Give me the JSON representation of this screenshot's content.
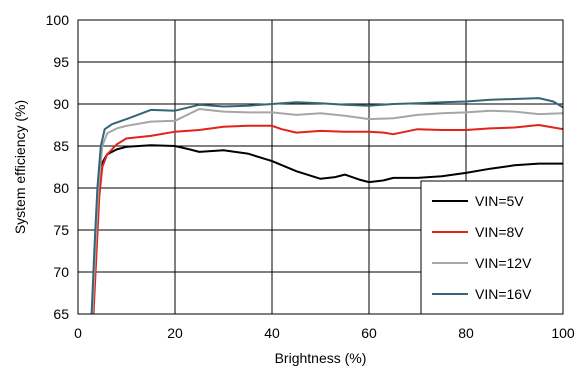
{
  "chart_data": {
    "type": "line",
    "xlabel": "Brightness (%)",
    "ylabel": "System efficiency (%)",
    "xlim": [
      0,
      100
    ],
    "ylim": [
      65,
      100
    ],
    "x_ticks": [
      0,
      20,
      40,
      60,
      80,
      100
    ],
    "y_ticks": [
      65,
      70,
      75,
      80,
      85,
      90,
      95,
      100
    ],
    "grid": true,
    "legend_position": "bottom-right",
    "series": [
      {
        "name": "VIN=5V",
        "color": "#000000",
        "points": [
          [
            3.0,
            65
          ],
          [
            3.6,
            72
          ],
          [
            4.2,
            79
          ],
          [
            5,
            83
          ],
          [
            6,
            84
          ],
          [
            8,
            84.6
          ],
          [
            10,
            84.9
          ],
          [
            15,
            85.1
          ],
          [
            20,
            85
          ],
          [
            23,
            84.6
          ],
          [
            25,
            84.3
          ],
          [
            30,
            84.5
          ],
          [
            35,
            84.1
          ],
          [
            40,
            83.2
          ],
          [
            45,
            82
          ],
          [
            50,
            81.1
          ],
          [
            53,
            81.3
          ],
          [
            55,
            81.6
          ],
          [
            58,
            81
          ],
          [
            60,
            80.7
          ],
          [
            63,
            80.9
          ],
          [
            65,
            81.2
          ],
          [
            70,
            81.2
          ],
          [
            75,
            81.4
          ],
          [
            80,
            81.8
          ],
          [
            85,
            82.3
          ],
          [
            90,
            82.7
          ],
          [
            95,
            82.9
          ],
          [
            100,
            82.9
          ]
        ]
      },
      {
        "name": "VIN=8V",
        "color": "#e32219",
        "points": [
          [
            3.2,
            65
          ],
          [
            3.8,
            72
          ],
          [
            4.4,
            79
          ],
          [
            5,
            82.5
          ],
          [
            6,
            84
          ],
          [
            8,
            85.2
          ],
          [
            10,
            85.9
          ],
          [
            15,
            86.2
          ],
          [
            20,
            86.7
          ],
          [
            25,
            86.9
          ],
          [
            30,
            87.3
          ],
          [
            35,
            87.4
          ],
          [
            40,
            87.4
          ],
          [
            42,
            87
          ],
          [
            45,
            86.6
          ],
          [
            50,
            86.8
          ],
          [
            55,
            86.7
          ],
          [
            60,
            86.7
          ],
          [
            63,
            86.6
          ],
          [
            65,
            86.4
          ],
          [
            70,
            87
          ],
          [
            75,
            86.9
          ],
          [
            80,
            86.9
          ],
          [
            85,
            87.1
          ],
          [
            90,
            87.2
          ],
          [
            95,
            87.5
          ],
          [
            98,
            87.2
          ],
          [
            100,
            87
          ]
        ]
      },
      {
        "name": "VIN=12V",
        "color": "#a6a6a6",
        "points": [
          [
            3.0,
            65
          ],
          [
            3.6,
            73
          ],
          [
            4.2,
            80
          ],
          [
            5,
            85
          ],
          [
            6,
            86.5
          ],
          [
            8,
            87.1
          ],
          [
            10,
            87.4
          ],
          [
            15,
            87.9
          ],
          [
            20,
            88
          ],
          [
            25,
            89.4
          ],
          [
            30,
            89.1
          ],
          [
            35,
            89
          ],
          [
            40,
            89
          ],
          [
            45,
            88.7
          ],
          [
            50,
            88.9
          ],
          [
            55,
            88.6
          ],
          [
            60,
            88.2
          ],
          [
            65,
            88.3
          ],
          [
            70,
            88.7
          ],
          [
            75,
            88.9
          ],
          [
            80,
            89
          ],
          [
            85,
            89.2
          ],
          [
            90,
            89.1
          ],
          [
            95,
            88.8
          ],
          [
            100,
            88.9
          ]
        ]
      },
      {
        "name": "VIN=16V",
        "color": "#336677",
        "points": [
          [
            2.8,
            65
          ],
          [
            3.4,
            73
          ],
          [
            4.0,
            80
          ],
          [
            4.7,
            85
          ],
          [
            5.5,
            87
          ],
          [
            7,
            87.6
          ],
          [
            10,
            88.2
          ],
          [
            15,
            89.3
          ],
          [
            20,
            89.2
          ],
          [
            25,
            89.9
          ],
          [
            30,
            89.7
          ],
          [
            35,
            89.8
          ],
          [
            40,
            90
          ],
          [
            45,
            90.2
          ],
          [
            50,
            90.1
          ],
          [
            55,
            89.9
          ],
          [
            60,
            89.8
          ],
          [
            65,
            90
          ],
          [
            70,
            90.1
          ],
          [
            75,
            90.2
          ],
          [
            80,
            90.3
          ],
          [
            85,
            90.5
          ],
          [
            90,
            90.6
          ],
          [
            95,
            90.7
          ],
          [
            98,
            90.3
          ],
          [
            100,
            89.6
          ]
        ]
      }
    ]
  }
}
